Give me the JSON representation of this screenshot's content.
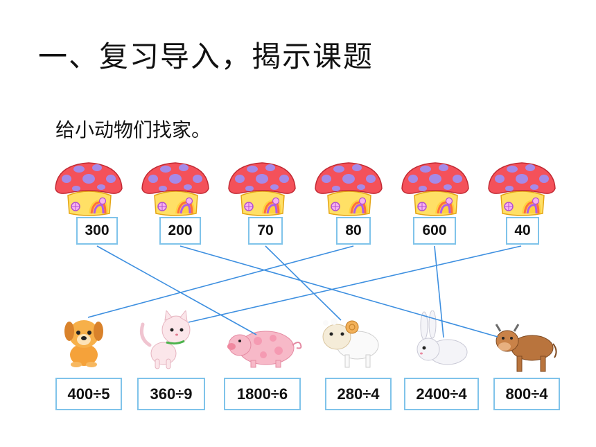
{
  "title": "一、复习导入，揭示课题",
  "instruction": "给小动物们找家。",
  "houses": [
    "300",
    "200",
    "70",
    "80",
    "600",
    "40"
  ],
  "animals": [
    {
      "name": "dog",
      "expression": "400÷5"
    },
    {
      "name": "cat",
      "expression": "360÷9"
    },
    {
      "name": "pig",
      "expression": "1800÷6"
    },
    {
      "name": "sheep",
      "expression": "280÷4"
    },
    {
      "name": "rabbit",
      "expression": "2400÷4"
    },
    {
      "name": "cow",
      "expression": "800÷4"
    }
  ],
  "colors": {
    "box_border": "#7fc3ea",
    "connector": "#3d8fe0",
    "mushroom_cap": "#f4515a",
    "cap_spots": "#a58ae8"
  }
}
